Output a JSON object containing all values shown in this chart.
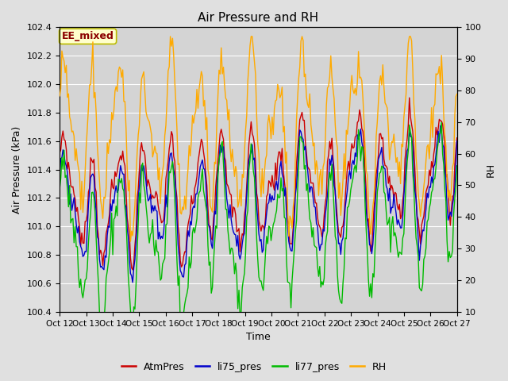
{
  "title": "Air Pressure and RH",
  "xlabel": "Time",
  "ylabel_left": "Air Pressure (kPa)",
  "ylabel_right": "RH",
  "annotation": "EE_mixed",
  "ylim_left": [
    100.4,
    102.4
  ],
  "ylim_right": [
    10,
    100
  ],
  "yticks_left": [
    100.4,
    100.6,
    100.8,
    101.0,
    101.2,
    101.4,
    101.6,
    101.8,
    102.0,
    102.2,
    102.4
  ],
  "yticks_right": [
    10,
    20,
    30,
    40,
    50,
    60,
    70,
    80,
    90,
    100
  ],
  "xtick_labels": [
    "Oct 12",
    "Oct 13",
    "Oct 14",
    "Oct 15",
    "Oct 16",
    "Oct 17",
    "Oct 18",
    "Oct 19",
    "Oct 20",
    "Oct 21",
    "Oct 22",
    "Oct 23",
    "Oct 24",
    "Oct 25",
    "Oct 26",
    "Oct 27"
  ],
  "n_ticks": 16,
  "colors": {
    "AtmPres": "#cc0000",
    "li75_pres": "#0000cc",
    "li77_pres": "#00bb00",
    "RH": "#ffaa00"
  },
  "bg_color": "#e0e0e0",
  "plot_bg_color": "#d4d4d4",
  "grid_color": "#ffffff",
  "linewidth": 1.0,
  "title_fontsize": 11,
  "label_fontsize": 9,
  "tick_fontsize": 8,
  "legend_fontsize": 9
}
